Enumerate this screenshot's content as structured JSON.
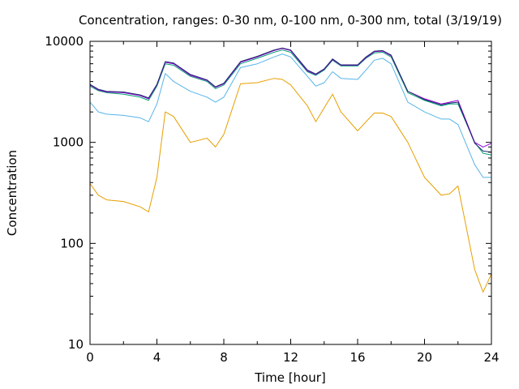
{
  "chart_data": {
    "type": "line",
    "title": "Concentration, ranges: 0-30 nm, 0-100 nm, 0-300 nm, total (3/19/19)",
    "xlabel": "Time [hour]",
    "ylabel": "Concentration",
    "xlim": [
      0,
      24
    ],
    "ylim": [
      10,
      10000
    ],
    "yscale": "log",
    "xticks": [
      0,
      4,
      8,
      12,
      16,
      20,
      24
    ],
    "xtick_labels": [
      "0",
      "4",
      "8",
      "12",
      "16",
      "20",
      "24"
    ],
    "yticks": [
      10,
      100,
      1000,
      10000
    ],
    "ytick_labels": [
      "10",
      "100",
      "1000",
      "10000"
    ],
    "grid": false,
    "legend": "none",
    "x": [
      0,
      0.5,
      1,
      2,
      3,
      3.5,
      4,
      4.5,
      5,
      6,
      7,
      7.5,
      8,
      9,
      10,
      11,
      11.5,
      12,
      13,
      13.5,
      14,
      14.5,
      15,
      16,
      16.5,
      17,
      17.5,
      18,
      19,
      20,
      21,
      21.5,
      22,
      23,
      23.5,
      24
    ],
    "series": [
      {
        "color": "#e69f00",
        "values": [
          390,
          300,
          270,
          260,
          230,
          205,
          450,
          2000,
          1800,
          1000,
          1100,
          900,
          1200,
          3800,
          3900,
          4300,
          4200,
          3700,
          2300,
          1600,
          2200,
          3000,
          2000,
          1300,
          1600,
          1950,
          1950,
          1800,
          1000,
          450,
          300,
          310,
          370,
          55,
          33,
          50
        ]
      },
      {
        "color": "#56b4e9",
        "values": [
          2500,
          2000,
          1900,
          1850,
          1750,
          1600,
          2400,
          4800,
          4000,
          3200,
          2800,
          2500,
          2800,
          5500,
          6000,
          7000,
          7500,
          7000,
          4500,
          3600,
          3900,
          5000,
          4300,
          4200,
          5200,
          6500,
          6800,
          6000,
          2500,
          2000,
          1700,
          1700,
          1500,
          600,
          450,
          450
        ]
      },
      {
        "color": "#009e73",
        "values": [
          3600,
          3250,
          3100,
          3000,
          2800,
          2600,
          3600,
          6000,
          5800,
          4500,
          4000,
          3400,
          3700,
          6000,
          6800,
          7800,
          8200,
          7800,
          5000,
          4600,
          5200,
          6500,
          5700,
          5700,
          6800,
          7700,
          7800,
          7000,
          3100,
          2600,
          2300,
          2400,
          2400,
          1000,
          780,
          750
        ]
      },
      {
        "color": "#9400d3",
        "values": [
          3700,
          3300,
          3150,
          3100,
          2900,
          2700,
          3700,
          6200,
          6000,
          4600,
          4100,
          3500,
          3800,
          6200,
          7000,
          8100,
          8500,
          8100,
          5100,
          4700,
          5300,
          6600,
          5800,
          5800,
          6900,
          7900,
          8000,
          7200,
          3200,
          2700,
          2400,
          2500,
          2600,
          1000,
          900,
          980
        ]
      },
      {
        "color": "#1f2a70",
        "values": [
          3750,
          3350,
          3200,
          3150,
          2950,
          2750,
          3750,
          6300,
          6100,
          4700,
          4150,
          3550,
          3850,
          6300,
          7100,
          8200,
          8600,
          8200,
          5200,
          4750,
          5350,
          6700,
          5850,
          5850,
          7000,
          8000,
          8100,
          7300,
          3200,
          2650,
          2350,
          2450,
          2500,
          980,
          820,
          800
        ]
      }
    ]
  }
}
